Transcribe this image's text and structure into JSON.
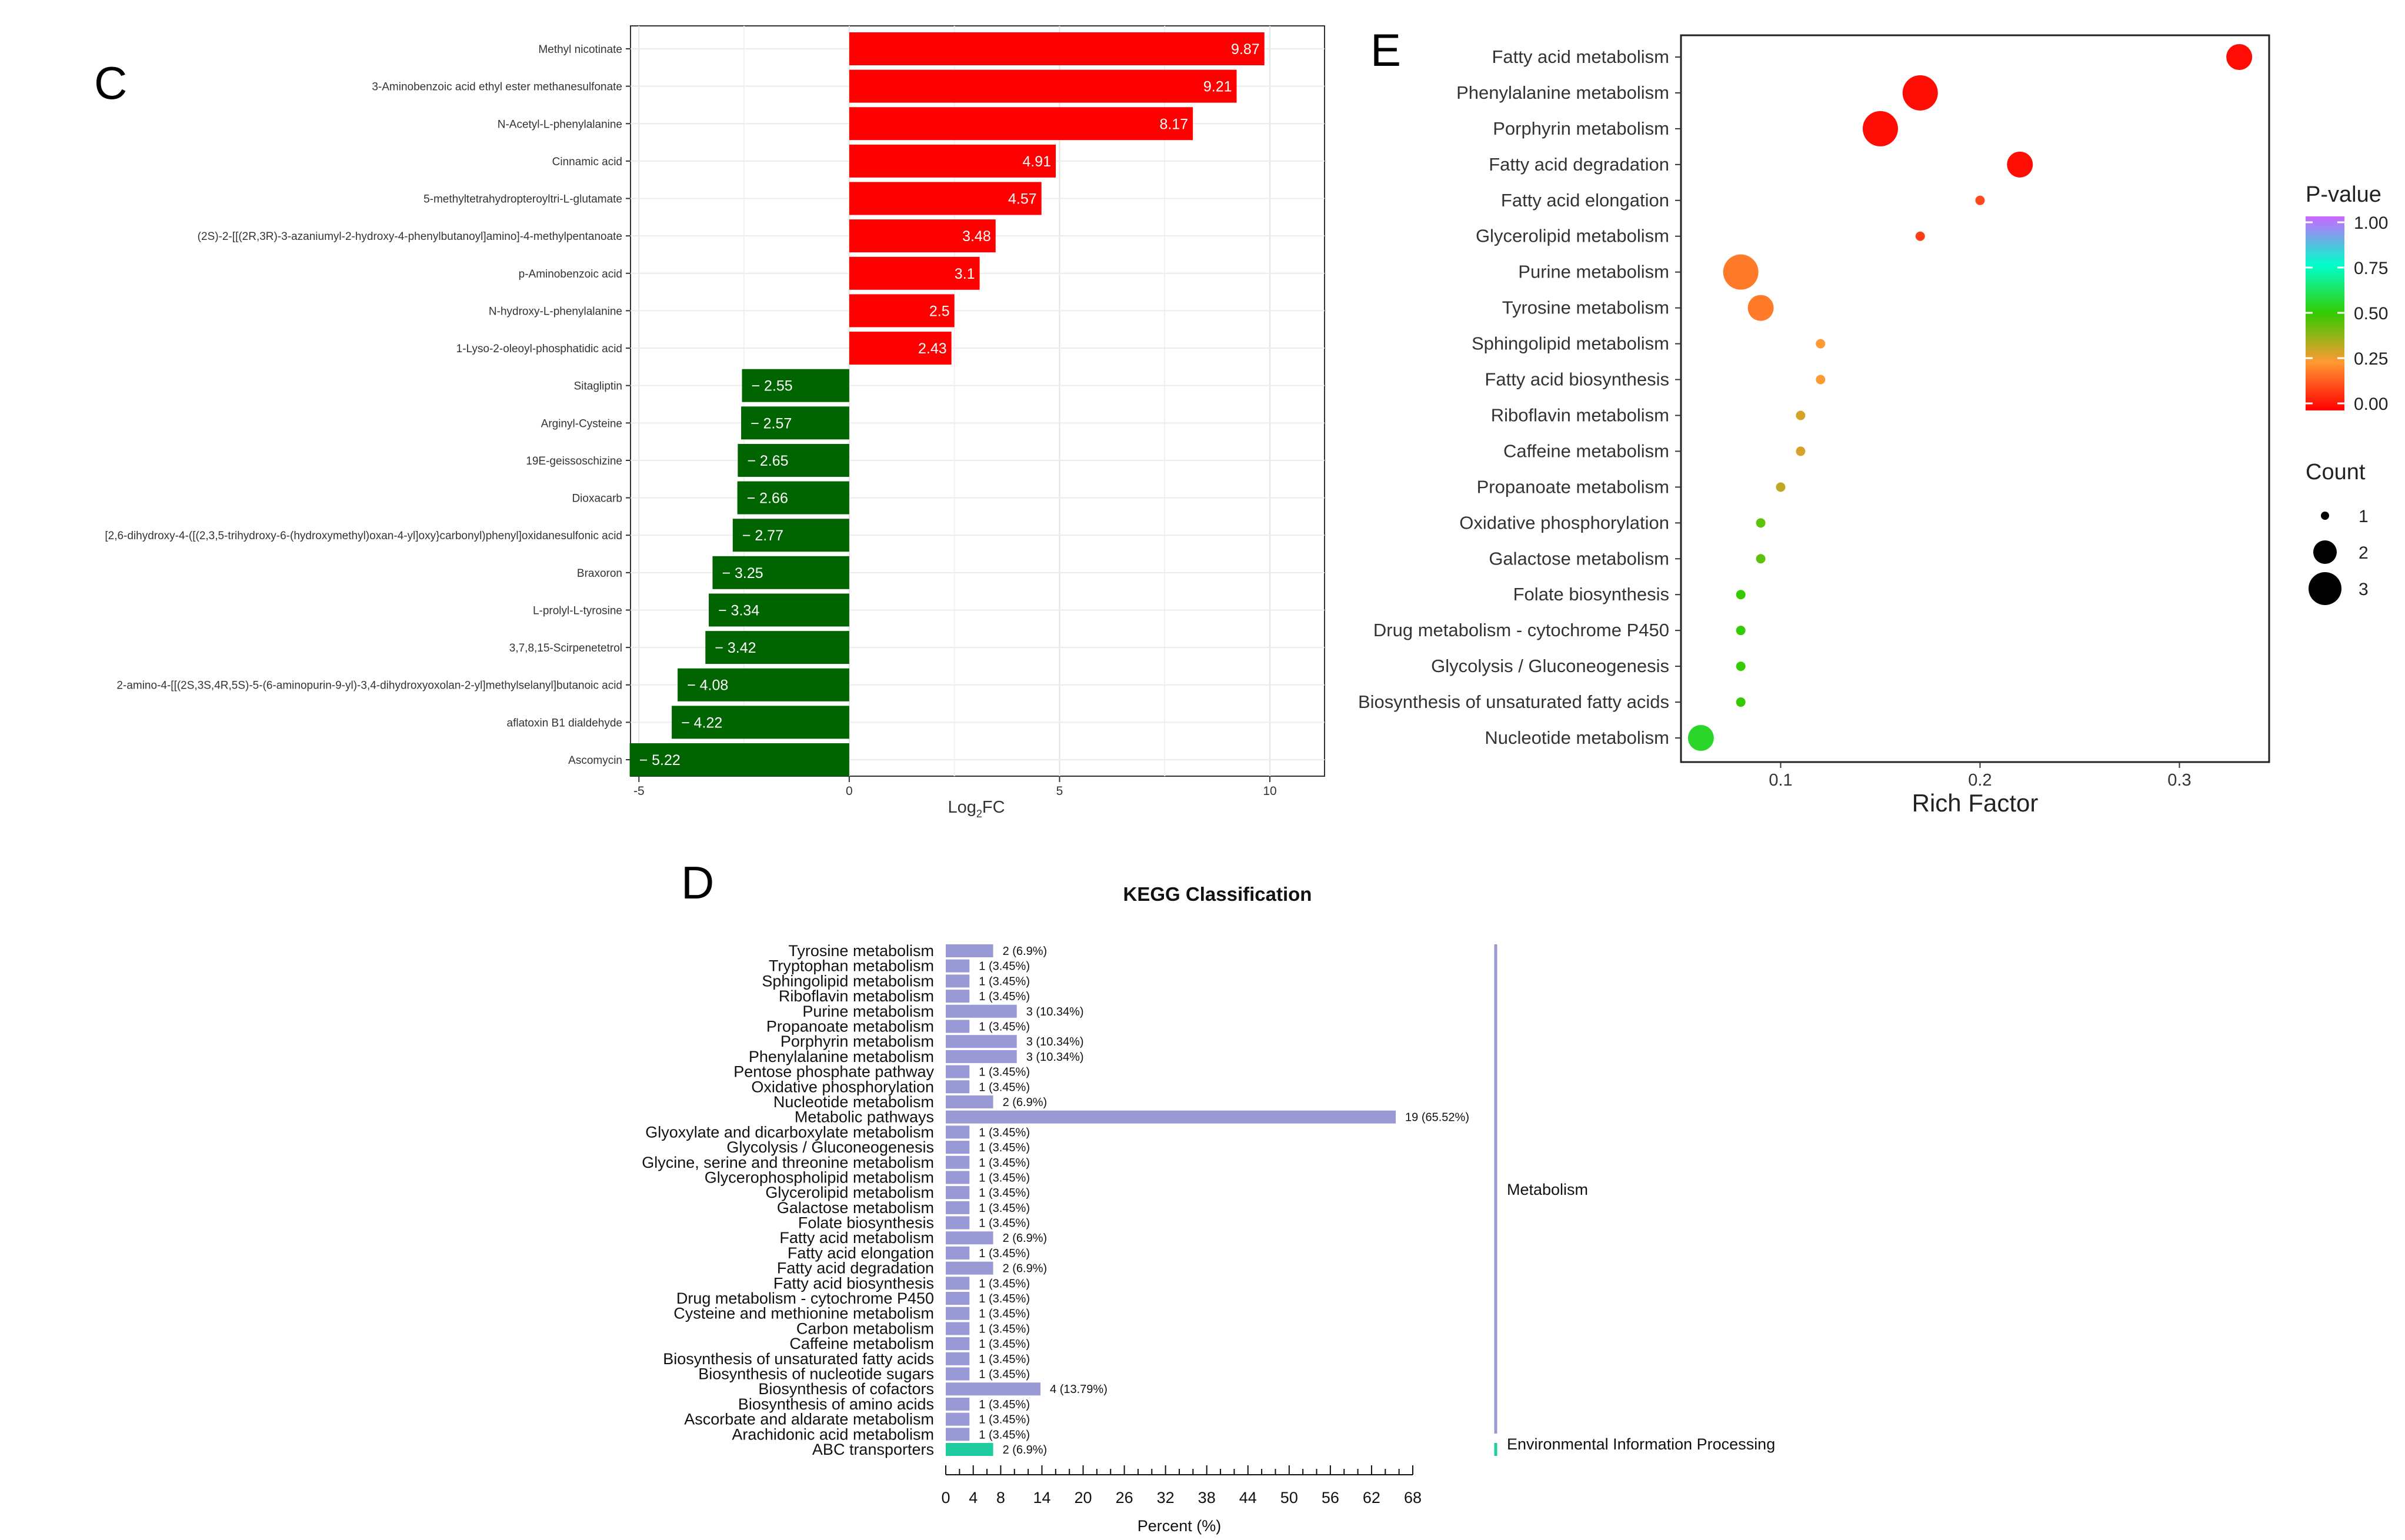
{
  "panels": {
    "c": "C",
    "d": "D",
    "e": "E"
  },
  "chart_data": [
    {
      "panel": "C",
      "type": "bar",
      "orientation": "horizontal",
      "xlabel_main": "Log",
      "xlabel_sub": "2",
      "xlabel_tail": "FC",
      "xlim": [
        -5.2,
        11.3
      ],
      "xticks": [
        -5,
        0,
        5,
        10
      ],
      "xtick_labels": [
        "-5",
        "0",
        "5",
        "10"
      ],
      "grid": true,
      "colors": {
        "up": "#ff0000",
        "down": "#006400"
      },
      "categories": [
        "Methyl nicotinate",
        "3-Aminobenzoic acid ethyl ester methanesulfonate",
        "N-Acetyl-L-phenylalanine",
        "Cinnamic acid",
        "5-methyltetrahydropteroyltri-L-glutamate",
        "(2S)-2-[[(2R,3R)-3-azaniumyl-2-hydroxy-4-phenylbutanoyl]amino]-4-methylpentanoate",
        "p-Aminobenzoic acid",
        "N-hydroxy-L-phenylalanine",
        "1-Lyso-2-oleoyl-phosphatidic acid",
        "Sitagliptin",
        "Arginyl-Cysteine",
        "19E-geissoschizine",
        "Dioxacarb",
        "[2,6-dihydroxy-4-([(2,3,5-trihydroxy-6-(hydroxymethyl)oxan-4-yl]oxy}carbonyl)phenyl]oxidanesulfonic acid",
        "Braxoron",
        "L-prolyl-L-tyrosine",
        "3,7,8,15-Scirpenetetrol",
        "2-amino-4-[[(2S,3S,4R,5S)-5-(6-aminopurin-9-yl)-3,4-dihydroxyoxolan-2-yl]methylselanyl]butanoic acid",
        "aflatoxin B1 dialdehyde",
        "Ascomycin"
      ],
      "values": [
        9.87,
        9.21,
        8.17,
        4.91,
        4.57,
        3.48,
        3.1,
        2.5,
        2.43,
        -2.55,
        -2.57,
        -2.65,
        -2.66,
        -2.77,
        -3.25,
        -3.34,
        -3.42,
        -4.08,
        -4.22,
        -5.22
      ],
      "value_labels": [
        "9.87",
        "9.21",
        "8.17",
        "4.91",
        "4.57",
        "3.48",
        "3.1",
        "2.5",
        "2.43",
        "− 2.55",
        "− 2.57",
        "− 2.65",
        "− 2.66",
        "− 2.77",
        "− 3.25",
        "− 3.34",
        "− 3.42",
        "− 4.08",
        "− 4.22",
        "− 5.22"
      ]
    },
    {
      "panel": "E",
      "type": "scatter",
      "xlabel": "Rich Factor",
      "xlim": [
        0.05,
        0.345
      ],
      "xticks": [
        0.1,
        0.2,
        0.3
      ],
      "xtick_labels": [
        "0.1",
        "0.2",
        "0.3"
      ],
      "categories": [
        "Fatty acid metabolism",
        "Phenylalanine metabolism",
        "Porphyrin metabolism",
        "Fatty acid degradation",
        "Fatty acid elongation",
        "Glycerolipid metabolism",
        "Purine metabolism",
        "Tyrosine metabolism",
        "Sphingolipid metabolism",
        "Fatty acid biosynthesis",
        "Riboflavin metabolism",
        "Caffeine metabolism",
        "Propanoate metabolism",
        "Oxidative phosphorylation",
        "Galactose metabolism",
        "Folate biosynthesis",
        "Drug metabolism - cytochrome P450",
        "Glycolysis / Gluconeogenesis",
        "Biosynthesis of unsaturated fatty acids",
        "Nucleotide metabolism"
      ],
      "rich_factor": [
        0.33,
        0.17,
        0.15,
        0.22,
        0.2,
        0.17,
        0.08,
        0.09,
        0.12,
        0.12,
        0.11,
        0.11,
        0.1,
        0.09,
        0.09,
        0.08,
        0.08,
        0.08,
        0.08,
        0.06
      ],
      "count": [
        2,
        3,
        3,
        2,
        1,
        1,
        3,
        2,
        1,
        1,
        1,
        1,
        1,
        1,
        1,
        1,
        1,
        1,
        1,
        2
      ],
      "p_value": [
        0.02,
        0.02,
        0.02,
        0.02,
        0.12,
        0.1,
        0.2,
        0.2,
        0.25,
        0.25,
        0.3,
        0.3,
        0.33,
        0.45,
        0.45,
        0.5,
        0.5,
        0.5,
        0.5,
        0.55
      ],
      "legend_color": {
        "title": "P-value",
        "ticks": [
          "1.00",
          "0.75",
          "0.50",
          "0.25",
          "0.00"
        ],
        "stops": [
          "#ff0000",
          "#ff9933",
          "#33cc00",
          "#00ffcc",
          "#cc66ff"
        ]
      },
      "legend_size": {
        "title": "Count",
        "ticks": [
          "1",
          "2",
          "3"
        ]
      }
    },
    {
      "panel": "D",
      "type": "bar",
      "orientation": "horizontal",
      "title": "KEGG Classification",
      "xlabel": "Percent (%)",
      "xlim": [
        0,
        68
      ],
      "xticks": [
        0,
        4,
        8,
        14,
        20,
        26,
        32,
        38,
        44,
        50,
        56,
        62,
        68
      ],
      "xtick_labels": [
        "0",
        "4",
        "8",
        "14",
        "20",
        "26",
        "32",
        "38",
        "44",
        "50",
        "56",
        "62",
        "68"
      ],
      "colors": {
        "Metabolism": "#9999d6",
        "Environmental Information Processing": "#1fcca0"
      },
      "classes": [
        {
          "name": "Metabolism",
          "from": 0,
          "to": 32
        },
        {
          "name": "Environmental Information Processing",
          "from": 33,
          "to": 33
        }
      ],
      "categories": [
        "Tyrosine metabolism",
        "Tryptophan metabolism",
        "Sphingolipid metabolism",
        "Riboflavin metabolism",
        "Purine metabolism",
        "Propanoate metabolism",
        "Porphyrin metabolism",
        "Phenylalanine metabolism",
        "Pentose phosphate pathway",
        "Oxidative phosphorylation",
        "Nucleotide metabolism",
        "Metabolic pathways",
        "Glyoxylate and dicarboxylate metabolism",
        "Glycolysis / Gluconeogenesis",
        "Glycine, serine and threonine metabolism",
        "Glycerophospholipid metabolism",
        "Glycerolipid metabolism",
        "Galactose metabolism",
        "Folate biosynthesis",
        "Fatty acid metabolism",
        "Fatty acid elongation",
        "Fatty acid degradation",
        "Fatty acid biosynthesis",
        "Drug metabolism - cytochrome P450",
        "Cysteine and methionine metabolism",
        "Carbon metabolism",
        "Caffeine metabolism",
        "Biosynthesis of unsaturated fatty acids",
        "Biosynthesis of nucleotide sugars",
        "Biosynthesis of cofactors",
        "Biosynthesis of amino acids",
        "Ascorbate and aldarate metabolism",
        "Arachidonic acid metabolism",
        "ABC transporters"
      ],
      "values": [
        6.9,
        3.45,
        3.45,
        3.45,
        10.34,
        3.45,
        10.34,
        10.34,
        3.45,
        3.45,
        6.9,
        65.52,
        3.45,
        3.45,
        3.45,
        3.45,
        3.45,
        3.45,
        3.45,
        6.9,
        3.45,
        6.9,
        3.45,
        3.45,
        3.45,
        3.45,
        3.45,
        3.45,
        3.45,
        13.79,
        3.45,
        3.45,
        3.45,
        6.9
      ],
      "value_labels": [
        "2 (6.9%)",
        "1 (3.45%)",
        "1 (3.45%)",
        "1 (3.45%)",
        "3 (10.34%)",
        "1 (3.45%)",
        "3 (10.34%)",
        "3 (10.34%)",
        "1 (3.45%)",
        "1 (3.45%)",
        "2 (6.9%)",
        "19 (65.52%)",
        "1 (3.45%)",
        "1 (3.45%)",
        "1 (3.45%)",
        "1 (3.45%)",
        "1 (3.45%)",
        "1 (3.45%)",
        "1 (3.45%)",
        "2 (6.9%)",
        "1 (3.45%)",
        "2 (6.9%)",
        "1 (3.45%)",
        "1 (3.45%)",
        "1 (3.45%)",
        "1 (3.45%)",
        "1 (3.45%)",
        "1 (3.45%)",
        "1 (3.45%)",
        "4 (13.79%)",
        "1 (3.45%)",
        "1 (3.45%)",
        "1 (3.45%)",
        "2 (6.9%)"
      ]
    }
  ]
}
